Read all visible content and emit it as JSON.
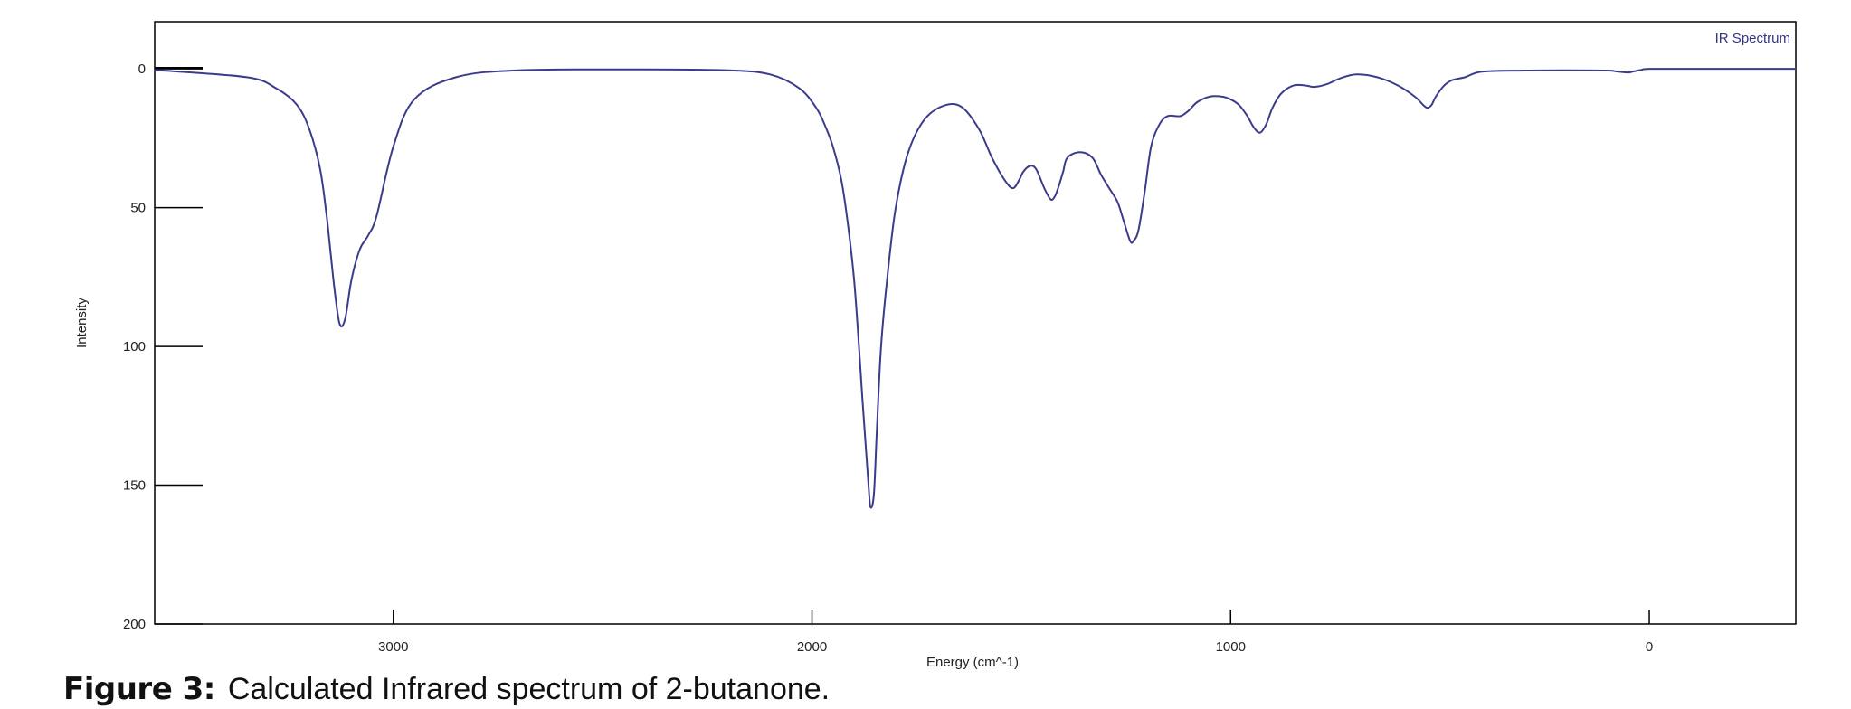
{
  "chart_data": {
    "type": "line",
    "title": "",
    "xlabel": "Energy (cm^-1)",
    "ylabel": "Intensity",
    "legend": {
      "text": "IR Spectrum",
      "placement": "top-right"
    },
    "x_ticks": [
      3000,
      2000,
      1000,
      0
    ],
    "y_ticks": [
      0,
      50,
      100,
      150,
      200
    ],
    "xlim": [
      3570,
      -350
    ],
    "ylim": [
      -17,
      200
    ],
    "x_reversed": true,
    "y_inverted": true,
    "grid": false,
    "colors": {
      "line": "#3b3b8c",
      "legend_text": "#33338a",
      "axis": "#000000"
    },
    "series": [
      {
        "name": "IR Spectrum",
        "x": [
          3570,
          3350,
          3280,
          3230,
          3200,
          3175,
          3160,
          3150,
          3140,
          3128,
          3115,
          3100,
          3080,
          3060,
          3040,
          3000,
          2950,
          2850,
          2700,
          2400,
          2200,
          2100,
          2030,
          1990,
          1970,
          1950,
          1930,
          1915,
          1900,
          1890,
          1880,
          1872,
          1865,
          1860,
          1852,
          1845,
          1835,
          1820,
          1800,
          1770,
          1730,
          1680,
          1640,
          1600,
          1570,
          1540,
          1520,
          1505,
          1495,
          1480,
          1465,
          1445,
          1430,
          1420,
          1410,
          1400,
          1390,
          1360,
          1330,
          1310,
          1290,
          1270,
          1255,
          1240,
          1232,
          1220,
          1205,
          1190,
          1170,
          1150,
          1120,
          1100,
          1080,
          1050,
          1020,
          1000,
          980,
          960,
          945,
          930,
          915,
          900,
          880,
          850,
          820,
          800,
          770,
          740,
          700,
          650,
          600,
          560,
          540,
          530,
          520,
          510,
          490,
          470,
          440,
          400,
          300,
          200,
          100,
          80,
          60,
          50,
          40,
          20,
          0,
          -100,
          -200,
          -350
        ],
        "y": [
          0.4,
          3,
          7,
          13,
          22,
          36,
          52,
          66,
          80,
          92,
          90,
          76,
          65,
          60,
          53,
          28,
          11,
          3,
          0.5,
          0.2,
          0.5,
          2,
          7,
          14,
          20,
          28,
          40,
          55,
          75,
          95,
          118,
          135,
          150,
          158,
          153,
          130,
          100,
          75,
          50,
          30,
          18,
          13,
          14,
          22,
          32,
          40,
          43,
          40,
          37,
          35,
          36,
          43,
          47,
          46,
          42,
          37,
          32,
          30,
          32,
          38,
          43,
          48,
          55,
          62,
          62,
          58,
          44,
          28,
          20,
          17,
          17,
          15,
          12,
          10,
          10,
          11,
          13,
          17,
          21,
          23,
          20,
          14,
          9,
          6,
          6,
          6.5,
          5.5,
          3.5,
          2,
          3,
          6,
          10,
          13,
          14,
          13,
          10,
          6,
          4,
          3,
          1,
          0.6,
          0.5,
          0.6,
          0.9,
          1.2,
          1.3,
          1.0,
          0.4,
          0,
          0,
          0,
          0
        ]
      }
    ]
  },
  "caption": {
    "label": "Figure 3:",
    "text": "Calculated Infrared spectrum of 2-butanone."
  }
}
